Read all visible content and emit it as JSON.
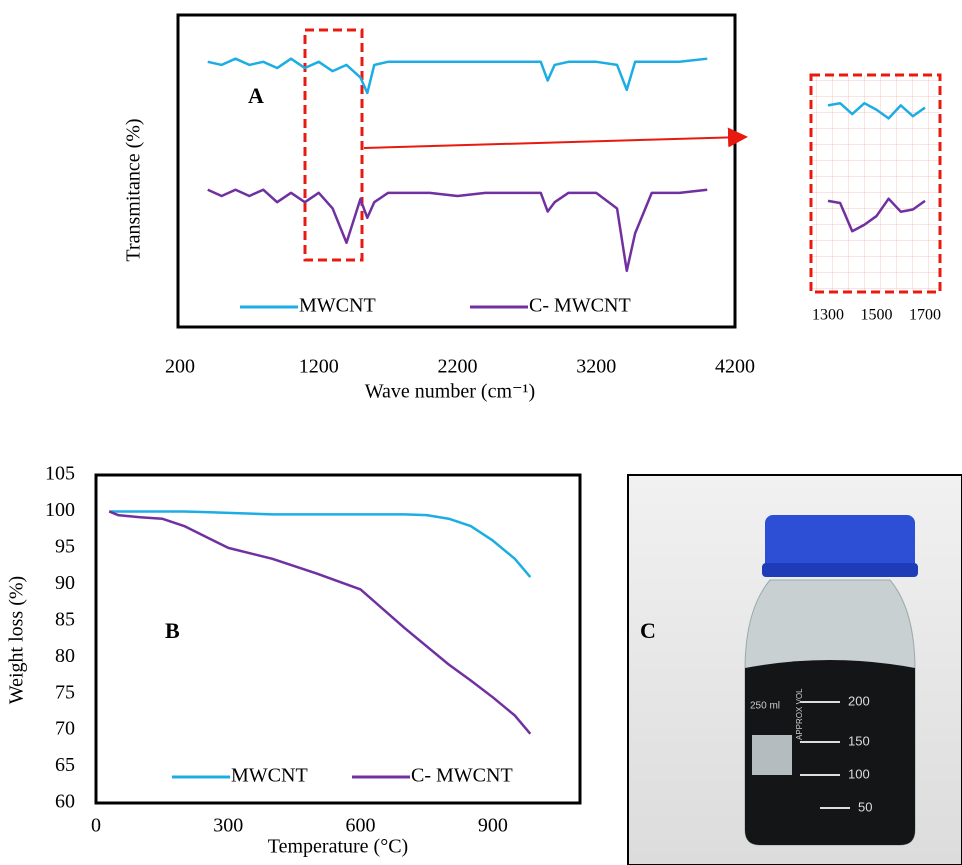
{
  "chart_data": [
    {
      "type": "line",
      "panel_label": "A",
      "x_label": "Wave number (cm⁻¹)",
      "y_label": "Transmitance (%)",
      "xlim": [
        200,
        4200
      ],
      "xticks": [
        200,
        1200,
        2200,
        3200,
        4200
      ],
      "ylim": [
        0,
        100
      ],
      "x": [
        400,
        500,
        600,
        700,
        800,
        900,
        1000,
        1100,
        1200,
        1300,
        1400,
        1500,
        1550,
        1600,
        1700,
        1800,
        2000,
        2200,
        2400,
        2600,
        2800,
        2850,
        2900,
        3000,
        3200,
        3350,
        3420,
        3480,
        3600,
        3800,
        4000
      ],
      "series": [
        {
          "name": "MWCNT",
          "color": "#1cade4",
          "values": [
            85,
            84,
            86,
            84,
            85,
            83,
            86,
            83,
            85,
            82,
            84,
            80,
            75,
            84,
            85,
            85,
            85,
            85,
            85,
            85,
            85,
            79,
            84,
            85,
            85,
            84,
            76,
            85,
            85,
            85,
            86
          ]
        },
        {
          "name": "C- MWCNT",
          "color": "#7030a0",
          "values": [
            44,
            42,
            44,
            42,
            44,
            40,
            43,
            40,
            43,
            38,
            27,
            41,
            35,
            40,
            43,
            43,
            43,
            42,
            43,
            43,
            43,
            37,
            40,
            43,
            43,
            38,
            18,
            30,
            43,
            43,
            44
          ]
        }
      ]
    },
    {
      "type": "line",
      "xlim": [
        1300,
        1700
      ],
      "xticks": [
        1300,
        1500,
        1700
      ],
      "ylim": [
        0,
        100
      ],
      "x": [
        1300,
        1350,
        1400,
        1450,
        1500,
        1550,
        1600,
        1650,
        1700
      ],
      "series": [
        {
          "color": "#1cade4",
          "values": [
            86,
            87,
            82,
            87,
            84,
            80,
            86,
            81,
            85
          ]
        },
        {
          "color": "#7030a0",
          "values": [
            42,
            41,
            28,
            31,
            35,
            43,
            37,
            38,
            42
          ]
        }
      ]
    },
    {
      "type": "line",
      "panel_label": "B",
      "x_label": "Temperature (°C)",
      "y_label": "Weight loss (%)",
      "xlim": [
        0,
        1100
      ],
      "xticks": [
        0,
        300,
        600,
        900
      ],
      "ylim": [
        60,
        105
      ],
      "yticks": [
        60,
        65,
        70,
        75,
        80,
        85,
        90,
        95,
        100,
        105
      ],
      "x": [
        30,
        50,
        100,
        150,
        200,
        250,
        300,
        400,
        500,
        600,
        700,
        750,
        800,
        850,
        900,
        950,
        985
      ],
      "series": [
        {
          "name": "MWCNT",
          "color": "#1cade4",
          "values": [
            100,
            100,
            100,
            100,
            100,
            99.9,
            99.8,
            99.6,
            99.6,
            99.6,
            99.6,
            99.5,
            99,
            98,
            96,
            93.5,
            91
          ]
        },
        {
          "name": "C- MWCNT",
          "color": "#7030a0",
          "values": [
            100,
            99.5,
            99.2,
            99,
            98,
            96.5,
            95,
            93.5,
            91.5,
            89.3,
            84,
            81.5,
            79,
            76.8,
            74.5,
            72,
            69.5
          ]
        }
      ]
    }
  ],
  "photo": {
    "panel_label": "C",
    "graduations": [
      "200",
      "150",
      "100",
      "50"
    ],
    "bottle_texts": [
      "250 ml",
      "APPROX VOL"
    ]
  }
}
